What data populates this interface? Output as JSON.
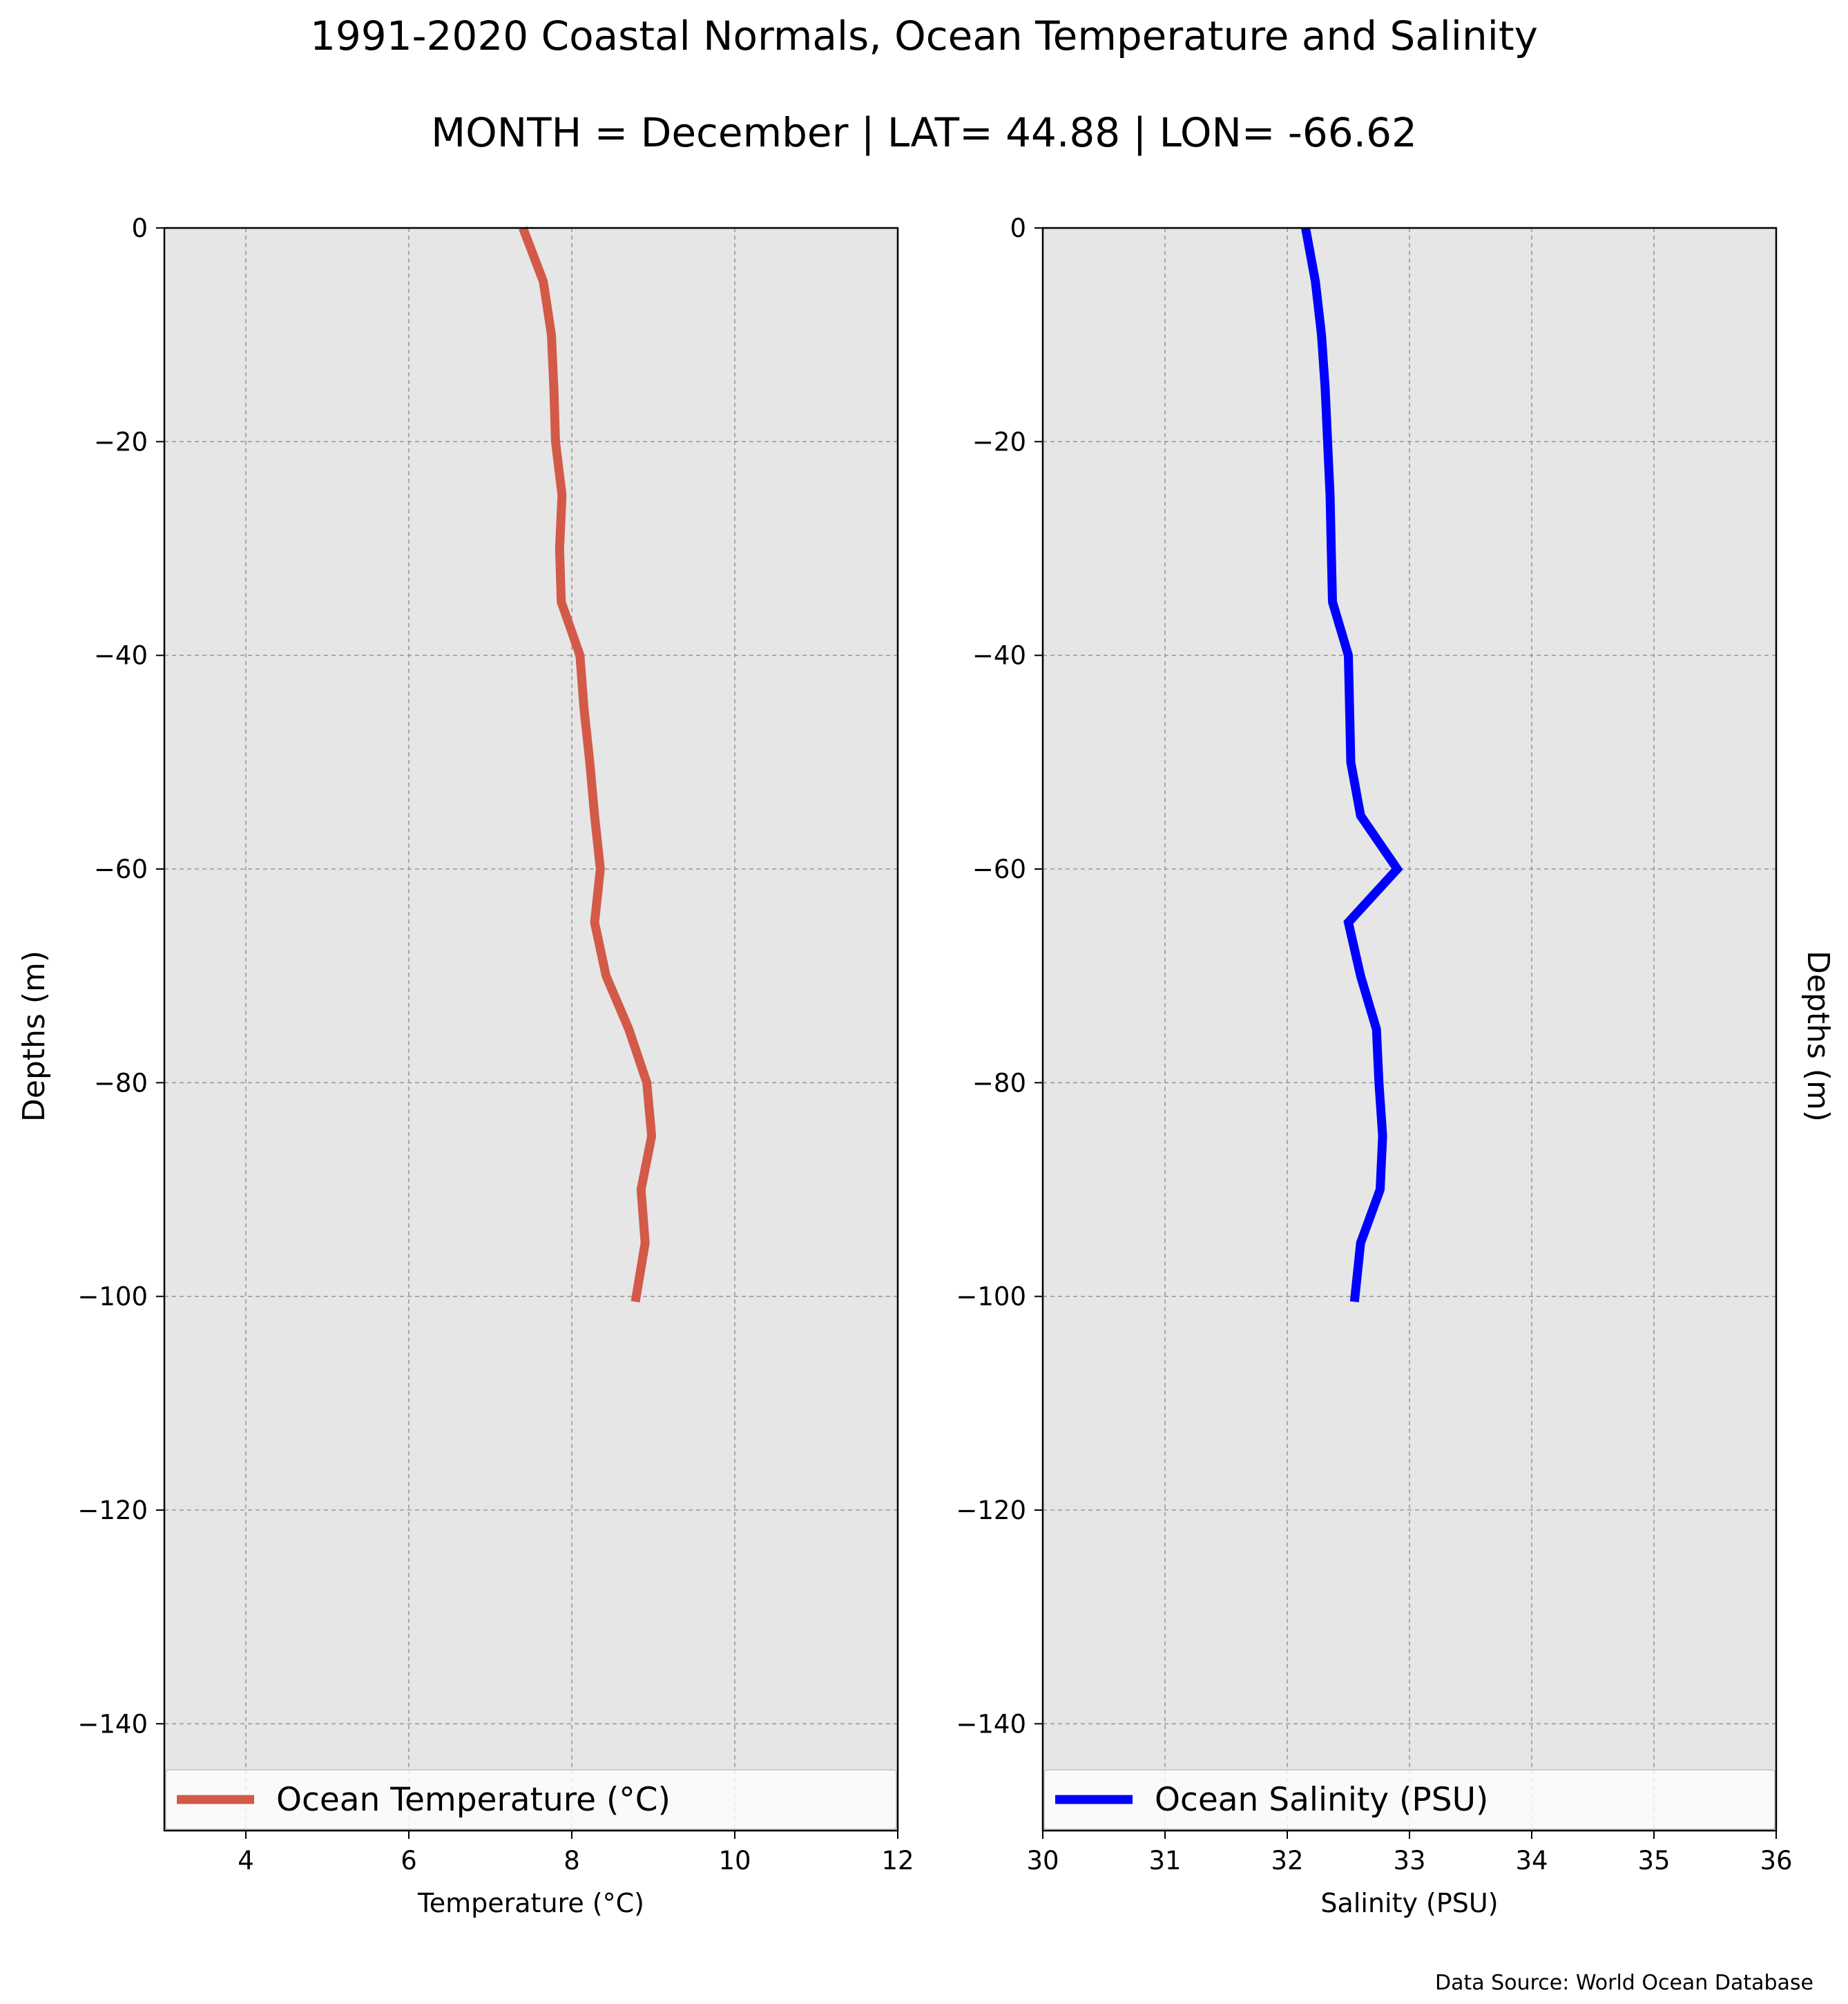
{
  "figure": {
    "title": "1991-2020 Coastal Normals, Ocean Temperature and Salinity",
    "subtitle": "MONTH = December | LAT= 44.88 | LON= -66.62",
    "source": "Data Source: World Ocean Database",
    "background": "#e6e6e6",
    "grid_color": "#9a9a9a"
  },
  "chart_data": [
    {
      "type": "line",
      "xlabel": "Temperature (°C)",
      "ylabel": "Depths (m)",
      "xlim": [
        3,
        12
      ],
      "ylim": [
        -150,
        0
      ],
      "xticks": [
        4,
        6,
        8,
        10,
        12
      ],
      "yticks": [
        0,
        -20,
        -40,
        -60,
        -80,
        -100,
        -120,
        -140
      ],
      "grid": true,
      "legend": "bottom",
      "series": [
        {
          "name": "Ocean Temperature (°C)",
          "color": "#d35a48",
          "points": [
            {
              "x": 7.4,
              "y": 0
            },
            {
              "x": 7.65,
              "y": -5
            },
            {
              "x": 7.75,
              "y": -10
            },
            {
              "x": 7.78,
              "y": -15
            },
            {
              "x": 7.8,
              "y": -20
            },
            {
              "x": 7.88,
              "y": -25
            },
            {
              "x": 7.85,
              "y": -30
            },
            {
              "x": 7.87,
              "y": -35
            },
            {
              "x": 8.1,
              "y": -40
            },
            {
              "x": 8.15,
              "y": -45
            },
            {
              "x": 8.22,
              "y": -50
            },
            {
              "x": 8.28,
              "y": -55
            },
            {
              "x": 8.35,
              "y": -60
            },
            {
              "x": 8.28,
              "y": -65
            },
            {
              "x": 8.42,
              "y": -70
            },
            {
              "x": 8.7,
              "y": -75
            },
            {
              "x": 8.92,
              "y": -80
            },
            {
              "x": 8.98,
              "y": -85
            },
            {
              "x": 8.85,
              "y": -90
            },
            {
              "x": 8.9,
              "y": -95
            },
            {
              "x": 8.78,
              "y": -100.5
            }
          ]
        }
      ]
    },
    {
      "type": "line",
      "xlabel": "Salinity (PSU)",
      "ylabel": "Depths (m)",
      "xlim": [
        30,
        36
      ],
      "ylim": [
        -150,
        0
      ],
      "xticks": [
        30,
        31,
        32,
        33,
        34,
        35,
        36
      ],
      "yticks": [
        0,
        -20,
        -40,
        -60,
        -80,
        -100,
        -120,
        -140
      ],
      "grid": true,
      "legend": "bottom",
      "series": [
        {
          "name": "Ocean Salinity (PSU)",
          "color": "#0000ff",
          "points": [
            {
              "x": 32.15,
              "y": 0
            },
            {
              "x": 32.23,
              "y": -5
            },
            {
              "x": 32.28,
              "y": -10
            },
            {
              "x": 32.31,
              "y": -15
            },
            {
              "x": 32.33,
              "y": -20
            },
            {
              "x": 32.35,
              "y": -25
            },
            {
              "x": 32.36,
              "y": -30
            },
            {
              "x": 32.37,
              "y": -35
            },
            {
              "x": 32.5,
              "y": -40
            },
            {
              "x": 32.51,
              "y": -45
            },
            {
              "x": 32.52,
              "y": -50
            },
            {
              "x": 32.6,
              "y": -55
            },
            {
              "x": 32.9,
              "y": -60
            },
            {
              "x": 32.5,
              "y": -65
            },
            {
              "x": 32.6,
              "y": -70
            },
            {
              "x": 32.73,
              "y": -75
            },
            {
              "x": 32.75,
              "y": -80
            },
            {
              "x": 32.78,
              "y": -85
            },
            {
              "x": 32.76,
              "y": -90
            },
            {
              "x": 32.6,
              "y": -95
            },
            {
              "x": 32.55,
              "y": -100.5
            }
          ]
        }
      ]
    }
  ]
}
